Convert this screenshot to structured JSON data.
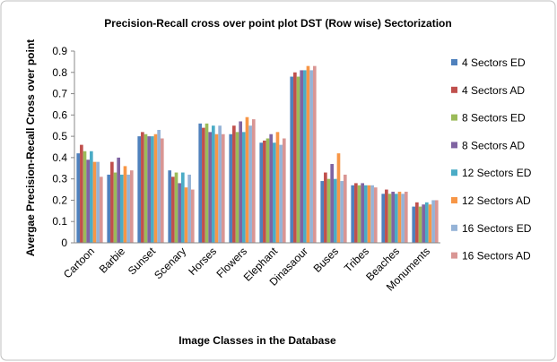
{
  "chart_data": {
    "type": "bar",
    "title": "Precision-Recall cross over point plot DST (Row wise) Sectorization",
    "xlabel": "Image Classes in the Database",
    "ylabel": "Avergae Precision-Recall  Cross over point",
    "categories": [
      "Cartoon",
      "Barbie",
      "Sunset",
      "Scenary",
      "Horses",
      "Flowers",
      "Elephant",
      "Dinasaour",
      "Buses",
      "Tribes",
      "Beaches",
      "Monuments"
    ],
    "series": [
      {
        "name": "4 Sectors ED",
        "color": "#4f81bd",
        "values": [
          0.42,
          0.32,
          0.5,
          0.34,
          0.56,
          0.51,
          0.47,
          0.78,
          0.29,
          0.27,
          0.23,
          0.17
        ]
      },
      {
        "name": "4 Sectors AD",
        "color": "#c0504d",
        "values": [
          0.46,
          0.38,
          0.52,
          0.31,
          0.54,
          0.55,
          0.48,
          0.8,
          0.33,
          0.28,
          0.25,
          0.19
        ]
      },
      {
        "name": "8 Sectors ED",
        "color": "#9bbb59",
        "values": [
          0.43,
          0.33,
          0.51,
          0.33,
          0.56,
          0.52,
          0.49,
          0.78,
          0.3,
          0.27,
          0.23,
          0.17
        ]
      },
      {
        "name": "8 Sectors AD",
        "color": "#8064a2",
        "values": [
          0.39,
          0.4,
          0.5,
          0.28,
          0.52,
          0.57,
          0.51,
          0.81,
          0.37,
          0.28,
          0.24,
          0.18
        ]
      },
      {
        "name": "12 Sectors ED",
        "color": "#4bacc6",
        "values": [
          0.43,
          0.32,
          0.5,
          0.33,
          0.55,
          0.52,
          0.47,
          0.81,
          0.3,
          0.27,
          0.23,
          0.19
        ]
      },
      {
        "name": "12 Sectors AD",
        "color": "#f79646",
        "values": [
          0.38,
          0.36,
          0.51,
          0.26,
          0.51,
          0.59,
          0.52,
          0.83,
          0.42,
          0.27,
          0.24,
          0.18
        ]
      },
      {
        "name": "16 Sectors ED",
        "color": "#95b3d7",
        "values": [
          0.38,
          0.32,
          0.53,
          0.32,
          0.55,
          0.55,
          0.46,
          0.81,
          0.29,
          0.27,
          0.23,
          0.2
        ]
      },
      {
        "name": "16 Sectors AD",
        "color": "#d99694",
        "values": [
          0.31,
          0.34,
          0.49,
          0.25,
          0.51,
          0.58,
          0.49,
          0.83,
          0.32,
          0.26,
          0.24,
          0.2
        ]
      }
    ],
    "ylim": [
      0,
      0.9
    ],
    "yticks": [
      0,
      0.1,
      0.2,
      0.3,
      0.4,
      0.5,
      0.6,
      0.7,
      0.8,
      0.9
    ],
    "legend": "right"
  }
}
